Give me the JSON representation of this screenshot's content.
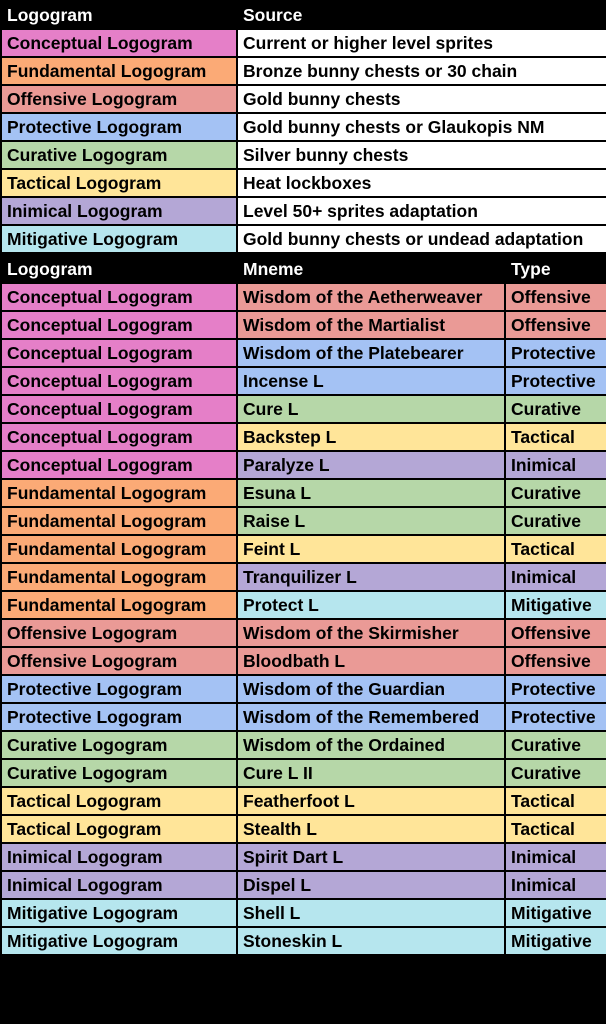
{
  "colors": {
    "conceptual": "#e57fc8",
    "fundamental": "#fbaa76",
    "offensive": "#ea9a96",
    "protective": "#a4c2f4",
    "curative": "#b6d7a8",
    "tactical": "#ffe599",
    "inimical": "#b4a7d6",
    "mitigative": "#b6e6ee",
    "header": "#000000"
  },
  "sources_table": {
    "headers": [
      "Logogram",
      "Source"
    ],
    "rows": [
      {
        "logogram": "Conceptual Logogram",
        "color": "conceptual",
        "source": "Current or higher level sprites"
      },
      {
        "logogram": "Fundamental Logogram",
        "color": "fundamental",
        "source": "Bronze bunny chests or 30 chain"
      },
      {
        "logogram": "Offensive Logogram",
        "color": "offensive",
        "source": "Gold bunny chests"
      },
      {
        "logogram": "Protective Logogram",
        "color": "protective",
        "source": "Gold bunny chests or Glaukopis NM"
      },
      {
        "logogram": "Curative Logogram",
        "color": "curative",
        "source": "Silver bunny chests"
      },
      {
        "logogram": "Tactical Logogram",
        "color": "tactical",
        "source": "Heat lockboxes"
      },
      {
        "logogram": "Inimical Logogram",
        "color": "inimical",
        "source": "Level 50+ sprites adaptation"
      },
      {
        "logogram": "Mitigative Logogram",
        "color": "mitigative",
        "source": "Gold bunny chests or undead adaptation"
      }
    ]
  },
  "mnemes_table": {
    "headers": [
      "Logogram",
      "Mneme",
      "Type"
    ],
    "rows": [
      {
        "logogram": "Conceptual Logogram",
        "lcolor": "conceptual",
        "mneme": "Wisdom of the Aetherweaver",
        "type": "Offensive",
        "tcolor": "offensive"
      },
      {
        "logogram": "Conceptual Logogram",
        "lcolor": "conceptual",
        "mneme": "Wisdom of the Martialist",
        "type": "Offensive",
        "tcolor": "offensive"
      },
      {
        "logogram": "Conceptual Logogram",
        "lcolor": "conceptual",
        "mneme": "Wisdom of the Platebearer",
        "type": "Protective",
        "tcolor": "protective"
      },
      {
        "logogram": "Conceptual Logogram",
        "lcolor": "conceptual",
        "mneme": "Incense L",
        "type": "Protective",
        "tcolor": "protective"
      },
      {
        "logogram": "Conceptual Logogram",
        "lcolor": "conceptual",
        "mneme": "Cure L",
        "type": "Curative",
        "tcolor": "curative"
      },
      {
        "logogram": "Conceptual Logogram",
        "lcolor": "conceptual",
        "mneme": "Backstep L",
        "type": "Tactical",
        "tcolor": "tactical"
      },
      {
        "logogram": "Conceptual Logogram",
        "lcolor": "conceptual",
        "mneme": "Paralyze L",
        "type": "Inimical",
        "tcolor": "inimical"
      },
      {
        "logogram": "Fundamental Logogram",
        "lcolor": "fundamental",
        "mneme": "Esuna L",
        "type": "Curative",
        "tcolor": "curative"
      },
      {
        "logogram": "Fundamental Logogram",
        "lcolor": "fundamental",
        "mneme": "Raise L",
        "type": "Curative",
        "tcolor": "curative"
      },
      {
        "logogram": "Fundamental Logogram",
        "lcolor": "fundamental",
        "mneme": "Feint L",
        "type": "Tactical",
        "tcolor": "tactical"
      },
      {
        "logogram": "Fundamental Logogram",
        "lcolor": "fundamental",
        "mneme": "Tranquilizer L",
        "type": "Inimical",
        "tcolor": "inimical"
      },
      {
        "logogram": "Fundamental Logogram",
        "lcolor": "fundamental",
        "mneme": "Protect L",
        "type": "Mitigative",
        "tcolor": "mitigative"
      },
      {
        "logogram": "Offensive Logogram",
        "lcolor": "offensive",
        "mneme": "Wisdom of the Skirmisher",
        "type": "Offensive",
        "tcolor": "offensive"
      },
      {
        "logogram": "Offensive Logogram",
        "lcolor": "offensive",
        "mneme": "Bloodbath L",
        "type": "Offensive",
        "tcolor": "offensive"
      },
      {
        "logogram": "Protective Logogram",
        "lcolor": "protective",
        "mneme": "Wisdom of the Guardian",
        "type": "Protective",
        "tcolor": "protective"
      },
      {
        "logogram": "Protective Logogram",
        "lcolor": "protective",
        "mneme": "Wisdom of the Remembered",
        "type": "Protective",
        "tcolor": "protective"
      },
      {
        "logogram": "Curative Logogram",
        "lcolor": "curative",
        "mneme": "Wisdom of the Ordained",
        "type": "Curative",
        "tcolor": "curative"
      },
      {
        "logogram": "Curative Logogram",
        "lcolor": "curative",
        "mneme": "Cure L II",
        "type": "Curative",
        "tcolor": "curative"
      },
      {
        "logogram": "Tactical Logogram",
        "lcolor": "tactical",
        "mneme": "Featherfoot L",
        "type": "Tactical",
        "tcolor": "tactical"
      },
      {
        "logogram": "Tactical Logogram",
        "lcolor": "tactical",
        "mneme": "Stealth L",
        "type": "Tactical",
        "tcolor": "tactical"
      },
      {
        "logogram": "Inimical Logogram",
        "lcolor": "inimical",
        "mneme": "Spirit Dart L",
        "type": "Inimical",
        "tcolor": "inimical"
      },
      {
        "logogram": "Inimical Logogram",
        "lcolor": "inimical",
        "mneme": "Dispel L",
        "type": "Inimical",
        "tcolor": "inimical"
      },
      {
        "logogram": "Mitigative Logogram",
        "lcolor": "mitigative",
        "mneme": "Shell L",
        "type": "Mitigative",
        "tcolor": "mitigative"
      },
      {
        "logogram": "Mitigative Logogram",
        "lcolor": "mitigative",
        "mneme": "Stoneskin L",
        "type": "Mitigative",
        "tcolor": "mitigative"
      }
    ]
  }
}
